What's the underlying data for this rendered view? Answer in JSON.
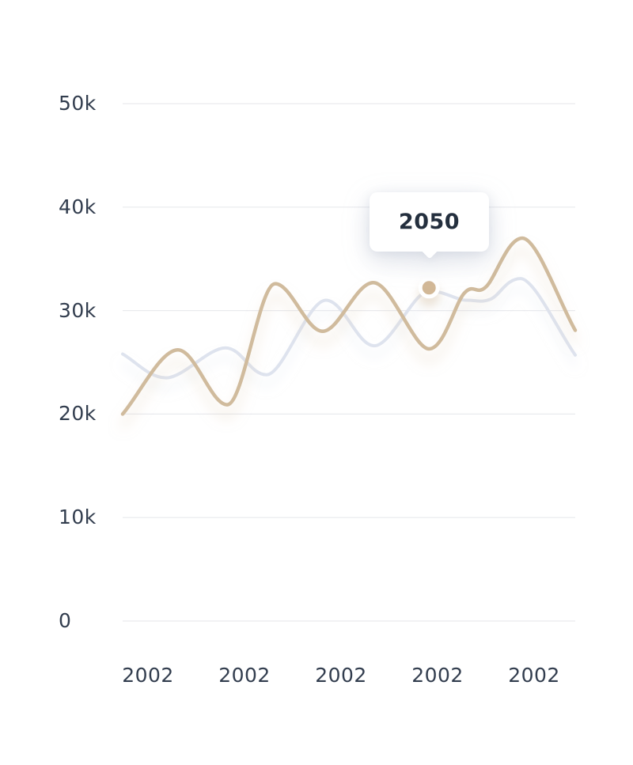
{
  "chart_data": {
    "type": "line",
    "title": "",
    "grid": "horizontal",
    "legend": "none",
    "x_axis": {
      "label": "",
      "ticks": [
        "2002",
        "2002",
        "2002",
        "2002",
        "2002"
      ]
    },
    "y_axis": {
      "label": "",
      "unit": "k",
      "range_k": [
        0,
        50
      ],
      "ticks": [
        {
          "label": "50k",
          "value_k": 50
        },
        {
          "label": "40k",
          "value_k": 40
        },
        {
          "label": "30k",
          "value_k": 30
        },
        {
          "label": "20k",
          "value_k": 20
        },
        {
          "label": "10k",
          "value_k": 10
        },
        {
          "label": "0",
          "value_k": 0
        }
      ]
    },
    "series": [
      {
        "name": "background-series",
        "color": "#dee3ee",
        "stroke_width": 4,
        "glow_color": "#e1e6f0",
        "points": [
          {
            "x_frac": 0.0,
            "value_k": 25.8
          },
          {
            "x_frac": 0.096,
            "value_k": 23.5
          },
          {
            "x_frac": 0.227,
            "value_k": 26.4
          },
          {
            "x_frac": 0.318,
            "value_k": 23.8
          },
          {
            "x_frac": 0.449,
            "value_k": 31.0
          },
          {
            "x_frac": 0.556,
            "value_k": 26.6
          },
          {
            "x_frac": 0.677,
            "value_k": 31.9
          },
          {
            "x_frac": 0.76,
            "value_k": 31.0
          },
          {
            "x_frac": 0.813,
            "value_k": 31.1
          },
          {
            "x_frac": 0.879,
            "value_k": 33.1
          },
          {
            "x_frac": 1.0,
            "value_k": 25.7
          }
        ]
      },
      {
        "name": "highlight-series",
        "color": "#d0bb9d",
        "stroke_width": 4.5,
        "glow_color": "#ddc9ac",
        "points": [
          {
            "x_frac": 0.0,
            "value_k": 20.0
          },
          {
            "x_frac": 0.122,
            "value_k": 26.2
          },
          {
            "x_frac": 0.231,
            "value_k": 20.9
          },
          {
            "x_frac": 0.337,
            "value_k": 32.6
          },
          {
            "x_frac": 0.442,
            "value_k": 28.0
          },
          {
            "x_frac": 0.554,
            "value_k": 32.7
          },
          {
            "x_frac": 0.677,
            "value_k": 26.3
          },
          {
            "x_frac": 0.755,
            "value_k": 31.7
          },
          {
            "x_frac": 0.803,
            "value_k": 32.3
          },
          {
            "x_frac": 0.883,
            "value_k": 37.0
          },
          {
            "x_frac": 1.0,
            "value_k": 28.1
          }
        ]
      }
    ],
    "marker": {
      "x_frac": 0.677,
      "value_k": 32.2,
      "color": "#d2b897",
      "ring_color": "#ffffff"
    },
    "tooltip": {
      "label": "2050"
    },
    "colors": {
      "background": "#ffffff",
      "grid": "#e9eaee",
      "axis_text": "#323d4e",
      "tooltip_text": "#242f3e",
      "tooltip_bg": "#ffffff"
    }
  }
}
